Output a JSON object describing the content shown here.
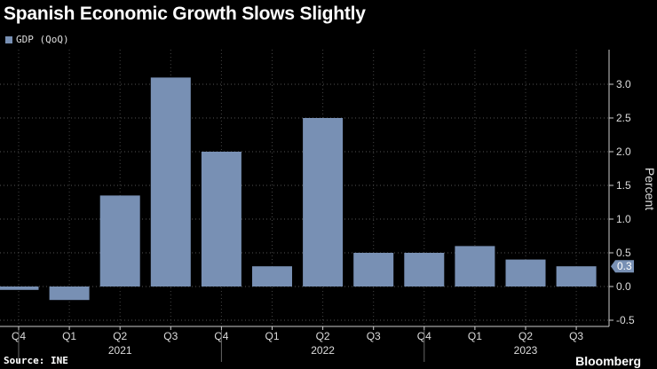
{
  "title": "Spanish Economic Growth Slows Slightly",
  "source": "Source: INE",
  "brand": "Bloomberg",
  "chart_data": {
    "type": "bar",
    "title": "Spanish Economic Growth Slows Slightly",
    "ylabel": "Percent",
    "ylim": [
      -0.6,
      3.4
    ],
    "yticks": [
      "-0.5",
      "0.0",
      "0.5",
      "1.0",
      "1.5",
      "2.0",
      "2.5",
      "3.0"
    ],
    "categories": [
      "Q4",
      "Q1",
      "Q2",
      "Q3",
      "Q4",
      "Q1",
      "Q2",
      "Q3",
      "Q4",
      "Q1",
      "Q2",
      "Q3"
    ],
    "years": [
      {
        "label": "2021",
        "at": 2
      },
      {
        "label": "2022",
        "at": 6
      },
      {
        "label": "2023",
        "at": 10
      }
    ],
    "series": [
      {
        "name": "GDP (QoQ)",
        "color": "#7890b4",
        "values": [
          -0.05,
          -0.2,
          1.35,
          3.1,
          2.0,
          0.3,
          2.5,
          0.5,
          0.5,
          0.6,
          0.4,
          0.3
        ]
      }
    ],
    "last_value_label": "0.3",
    "grid": true,
    "legend": "top-left"
  }
}
